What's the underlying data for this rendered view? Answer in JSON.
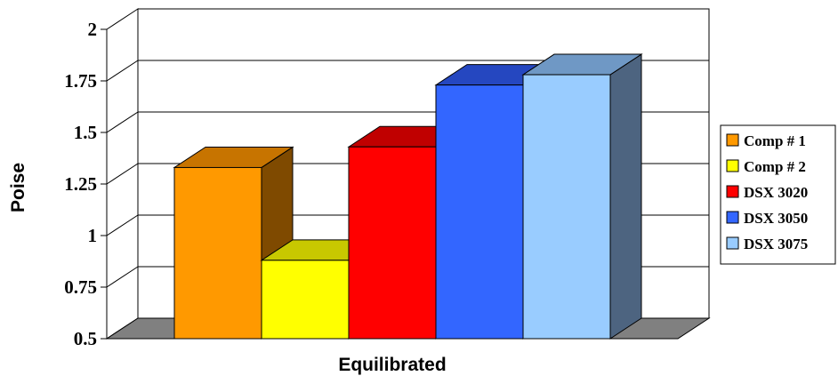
{
  "chart_data": {
    "type": "bar",
    "style": "3d-clustered",
    "title": "",
    "xlabel": "Equilibrated",
    "ylabel": "Poise",
    "categories": [
      "Equilibrated"
    ],
    "ylim": [
      0.5,
      2
    ],
    "yticks": [
      "0.5",
      "0.75",
      "1",
      "1.25",
      "1.5",
      "1.75",
      "2"
    ],
    "grid": true,
    "legend_position": "right",
    "series": [
      {
        "name": "Comp # 1",
        "values": [
          1.33
        ],
        "color": "#FF9900",
        "top_color": "#C77400",
        "side_color": "#7F4A00"
      },
      {
        "name": "Comp # 2",
        "values": [
          0.88
        ],
        "color": "#FFFF00",
        "top_color": "#C8C800",
        "side_color": "#808000"
      },
      {
        "name": "DSX 3020",
        "values": [
          1.43
        ],
        "color": "#FF0000",
        "top_color": "#C00000",
        "side_color": "#800000"
      },
      {
        "name": "DSX 3050",
        "values": [
          1.73
        ],
        "color": "#3366FF",
        "top_color": "#2547C0",
        "side_color": "#1A3380"
      },
      {
        "name": "DSX 3075",
        "values": [
          1.78
        ],
        "color": "#99CCFF",
        "top_color": "#6F98C5",
        "side_color": "#4D6480"
      }
    ]
  }
}
